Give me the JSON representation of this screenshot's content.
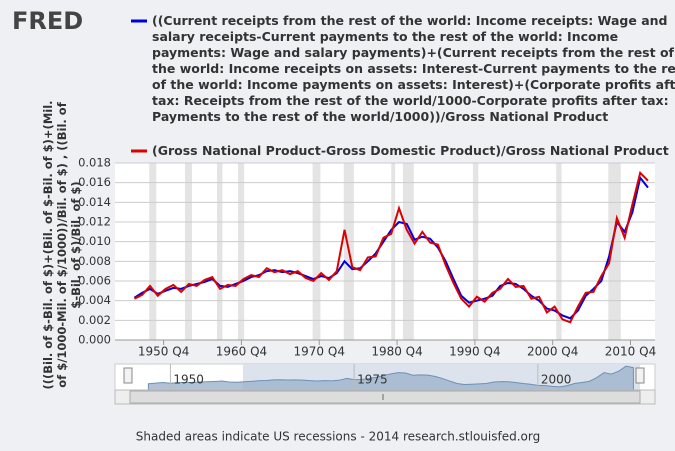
{
  "chart_data": {
    "type": "line",
    "logo": "FRED",
    "ylabel": "(((Bil. of $-Bil. of $)+(Bil. of $-Bil. of $)+(Mil. of $/1000-Mil. of $/1000))/Bil. of $) , ((Bil. of $-Bil. of $)/Bil. of $)",
    "footer": "Shaded areas indicate US recessions - 2014 research.stlouisfed.org",
    "x": [
      1947,
      1948,
      1949,
      1950,
      1951,
      1952,
      1953,
      1954,
      1955,
      1956,
      1957,
      1958,
      1959,
      1960,
      1961,
      1962,
      1963,
      1964,
      1965,
      1966,
      1967,
      1968,
      1969,
      1970,
      1971,
      1972,
      1973,
      1974,
      1975,
      1976,
      1977,
      1978,
      1979,
      1980,
      1981,
      1982,
      1983,
      1984,
      1985,
      1986,
      1987,
      1988,
      1989,
      1990,
      1991,
      1992,
      1993,
      1994,
      1995,
      1996,
      1997,
      1998,
      1999,
      2000,
      2001,
      2002,
      2003,
      2004,
      2005,
      2006,
      2007,
      2008,
      2009,
      2010,
      2011,
      2012,
      2013
    ],
    "series": [
      {
        "name": "((Current receipts from the rest of the world: Income receipts: Wage and salary receipts-Current payments to the rest of the world: Income payments: Wage and salary payments)+(Current receipts from the rest of the world: Income receipts on assets: Interest-Current payments to the rest of the world: Income payments on assets: Interest)+(Corporate profits after tax: Receipts from the rest of the world/1000-Corporate profits after tax: Payments to the rest of the world/1000))/Gross National Product",
        "color": "#0000dd",
        "values": [
          0.0043,
          0.0048,
          0.0052,
          0.0047,
          0.005,
          0.0053,
          0.0052,
          0.0055,
          0.0057,
          0.0059,
          0.0062,
          0.0055,
          0.0054,
          0.0057,
          0.006,
          0.0064,
          0.0066,
          0.007,
          0.0071,
          0.0069,
          0.007,
          0.0068,
          0.0065,
          0.0062,
          0.0065,
          0.0063,
          0.0068,
          0.008,
          0.0072,
          0.0073,
          0.008,
          0.0088,
          0.01,
          0.0112,
          0.012,
          0.0118,
          0.0102,
          0.0105,
          0.0103,
          0.0094,
          0.008,
          0.0062,
          0.0045,
          0.0038,
          0.004,
          0.0042,
          0.0045,
          0.0055,
          0.0058,
          0.0057,
          0.0052,
          0.0045,
          0.004,
          0.0032,
          0.003,
          0.0025,
          0.0022,
          0.003,
          0.0045,
          0.0052,
          0.006,
          0.0085,
          0.012,
          0.011,
          0.013,
          0.0165,
          0.0155
        ]
      },
      {
        "name": "(Gross National Product-Gross Domestic Product)/Gross National Product",
        "color": "#dd0000",
        "values": [
          0.0042,
          0.0046,
          0.0055,
          0.0045,
          0.0052,
          0.0056,
          0.0049,
          0.0057,
          0.0055,
          0.0061,
          0.0064,
          0.0052,
          0.0056,
          0.0055,
          0.0062,
          0.0066,
          0.0064,
          0.0073,
          0.0069,
          0.0071,
          0.0067,
          0.007,
          0.0063,
          0.006,
          0.0068,
          0.0061,
          0.007,
          0.0112,
          0.0074,
          0.0071,
          0.0084,
          0.0085,
          0.0104,
          0.0108,
          0.0134,
          0.0112,
          0.0098,
          0.011,
          0.0099,
          0.0097,
          0.0076,
          0.0058,
          0.0042,
          0.0034,
          0.0044,
          0.0039,
          0.0048,
          0.0052,
          0.0062,
          0.0054,
          0.0055,
          0.0042,
          0.0044,
          0.0028,
          0.0034,
          0.0021,
          0.0018,
          0.0034,
          0.0048,
          0.0049,
          0.0065,
          0.0078,
          0.0124,
          0.0104,
          0.0138,
          0.017,
          0.0162
        ]
      }
    ],
    "xlim": [
      1944.5,
      2013.9
    ],
    "xticks": [
      {
        "value": 1950.75,
        "label": "1950 Q4"
      },
      {
        "value": 1960.75,
        "label": "1960 Q4"
      },
      {
        "value": 1970.75,
        "label": "1970 Q4"
      },
      {
        "value": 1980.75,
        "label": "1980 Q4"
      },
      {
        "value": 1990.75,
        "label": "1990 Q4"
      },
      {
        "value": 2000.75,
        "label": "2000 Q4"
      },
      {
        "value": 2010.75,
        "label": "2010 Q4"
      }
    ],
    "ylim": [
      0,
      0.018
    ],
    "yticks": [
      {
        "value": 0,
        "label": "0.000"
      },
      0.002,
      0.004,
      0.006,
      0.008,
      {
        "value": 0.01,
        "label": "0.010"
      },
      0.012,
      0.014,
      0.016,
      0.018
    ],
    "recessions": [
      [
        1948.9,
        1949.8
      ],
      [
        1953.5,
        1954.4
      ],
      [
        1957.6,
        1958.3
      ],
      [
        1960.3,
        1961.1
      ],
      [
        1969.9,
        1970.9
      ],
      [
        1973.9,
        1975.2
      ],
      [
        1980.0,
        1980.5
      ],
      [
        1981.5,
        1982.9
      ],
      [
        1990.5,
        1991.2
      ],
      [
        2001.2,
        2001.9
      ],
      [
        2007.9,
        2009.5
      ]
    ],
    "navigator_ticks": [
      1950,
      1975,
      2000
    ],
    "grid": true
  }
}
